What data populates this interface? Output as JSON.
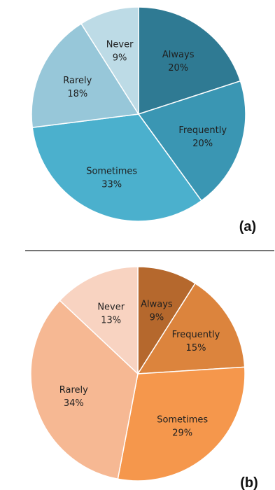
{
  "chart_data": [
    {
      "type": "pie",
      "panel_label": "(a)",
      "slices": [
        {
          "label": "Always",
          "value": 20,
          "value_text": "20%",
          "color": "#2f7a93"
        },
        {
          "label": "Frequently",
          "value": 20,
          "value_text": "20%",
          "color": "#3a96b3"
        },
        {
          "label": "Sometimes",
          "value": 33,
          "value_text": "33%",
          "color": "#4bb0cd"
        },
        {
          "label": "Rarely",
          "value": 18,
          "value_text": "18%",
          "color": "#97c7d9"
        },
        {
          "label": "Never",
          "value": 9,
          "value_text": "9%",
          "color": "#bddbe6"
        }
      ]
    },
    {
      "type": "pie",
      "panel_label": "(b)",
      "slices": [
        {
          "label": "Always",
          "value": 9,
          "value_text": "9%",
          "color": "#b5682d"
        },
        {
          "label": "Frequently",
          "value": 15,
          "value_text": "15%",
          "color": "#dc843d"
        },
        {
          "label": "Sometimes",
          "value": 29,
          "value_text": "29%",
          "color": "#f5974c"
        },
        {
          "label": "Rarely",
          "value": 34,
          "value_text": "34%",
          "color": "#f6b893"
        },
        {
          "label": "Never",
          "value": 13,
          "value_text": "13%",
          "color": "#f8d3c1"
        }
      ]
    }
  ]
}
